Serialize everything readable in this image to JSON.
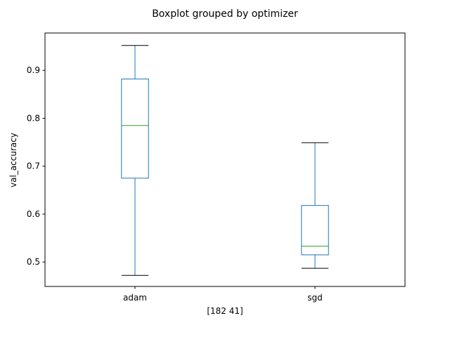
{
  "chart_data": {
    "type": "boxplot",
    "title": "Boxplot grouped by optimizer",
    "xlabel": "[182  41]",
    "ylabel": "val_accuracy",
    "categories": [
      "adam",
      "sgd"
    ],
    "boxes": [
      {
        "name": "adam",
        "whisker_low": 0.472,
        "q1": 0.675,
        "median": 0.785,
        "q3": 0.882,
        "whisker_high": 0.952
      },
      {
        "name": "sgd",
        "whisker_low": 0.487,
        "q1": 0.515,
        "median": 0.533,
        "q3": 0.618,
        "whisker_high": 0.749
      }
    ],
    "ylim": [
      0.449,
      0.978
    ],
    "yticks": [
      0.5,
      0.6,
      0.7,
      0.8,
      0.9
    ],
    "ytick_labels": [
      "0.5",
      "0.6",
      "0.7",
      "0.8",
      "0.9"
    ],
    "grid": false,
    "colors": {
      "box": "#1f77b4",
      "median": "#2ca02c",
      "cap": "#000000"
    }
  }
}
